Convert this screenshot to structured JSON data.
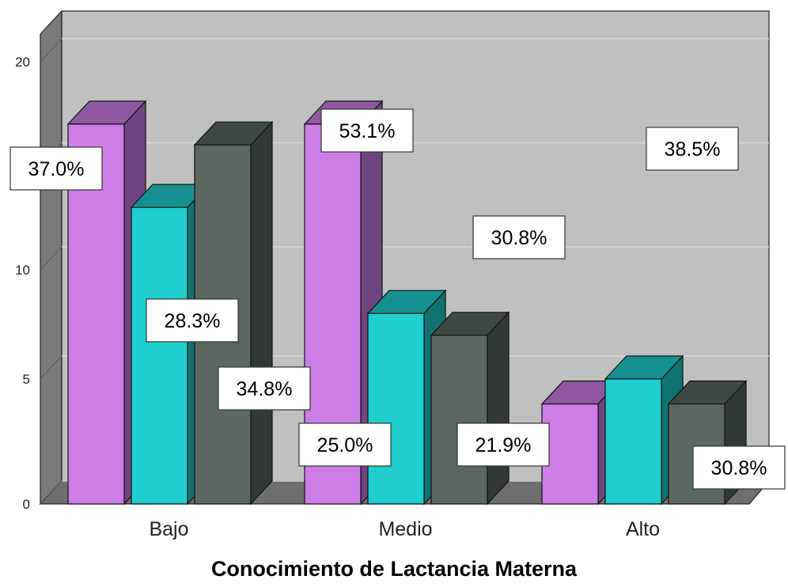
{
  "chart_data": {
    "type": "bar",
    "title": "",
    "xlabel": "Conocimiento de Lactancia  Materna",
    "ylabel": "",
    "categories": [
      "Bajo",
      "Medio",
      "Alto"
    ],
    "yticks": [
      "0",
      "5",
      "10",
      "20"
    ],
    "series": [
      {
        "color": "#cc7ee6",
        "values": [
          17,
          17,
          4
        ],
        "labels": [
          "37.0%",
          "53.1%",
          "30.8%"
        ]
      },
      {
        "color": "#1fcfcf",
        "values": [
          13,
          8,
          5
        ],
        "labels": [
          "28.3%",
          "25.0%",
          "38.5%"
        ]
      },
      {
        "color": "#5b6761",
        "values": [
          16,
          7,
          4
        ],
        "labels": [
          "34.8%",
          "21.9%",
          "30.8%"
        ]
      }
    ],
    "grid": true,
    "style": "3d"
  }
}
